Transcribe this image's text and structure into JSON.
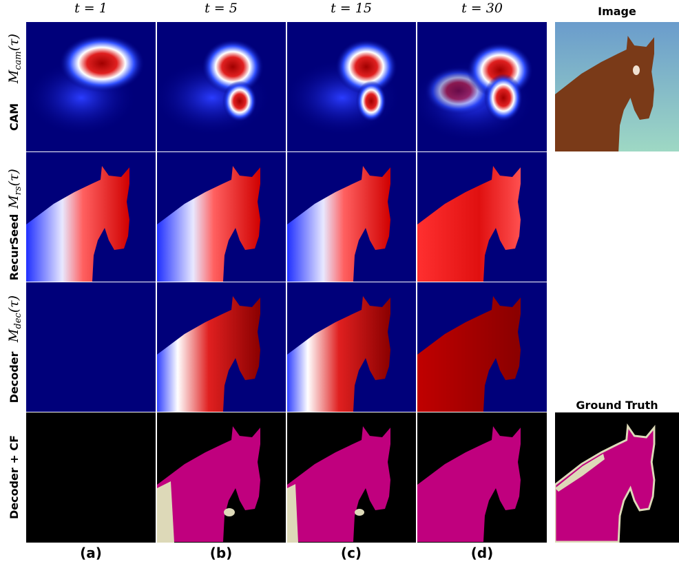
{
  "column_headers": [
    "t = 1",
    "t = 5",
    "t = 15",
    "t = 30"
  ],
  "image_header": "Image",
  "gt_header": "Ground Truth",
  "rows": [
    {
      "math": "M",
      "sub": "cam",
      "arg": "(τ)",
      "label": "CAM"
    },
    {
      "math": "M",
      "sub": "rs",
      "arg": "(τ)",
      "label": "RecurSeed"
    },
    {
      "math": "M",
      "sub": "dec",
      "arg": "(τ)",
      "label": "Decoder"
    },
    {
      "label": "Decoder + CF"
    }
  ],
  "panel_labels": [
    "(a)",
    "(b)",
    "(c)",
    "(d)"
  ]
}
